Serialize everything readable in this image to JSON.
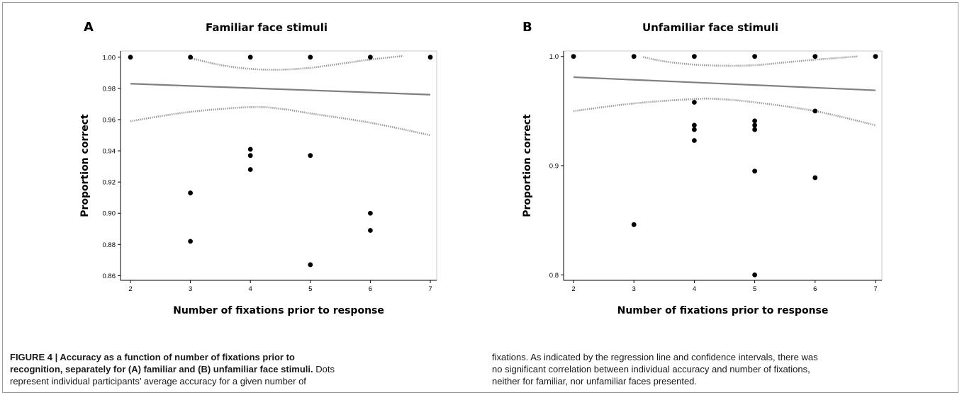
{
  "chart_data": [
    {
      "type": "scatter",
      "panel": "A",
      "title": "Familiar face stimuli",
      "xlabel": "Number of fixations prior to response",
      "ylabel": "Proportion correct",
      "xlim": [
        2,
        7
      ],
      "ylim": [
        0.857,
        1.004
      ],
      "xticks": [
        "2",
        "3",
        "4",
        "5",
        "6",
        "7"
      ],
      "yticks": [
        "0.86",
        "0.88",
        "0.90",
        "0.92",
        "0.94",
        "0.96",
        "0.98",
        "1.00"
      ],
      "points": [
        {
          "x": 2,
          "y": 1.0
        },
        {
          "x": 3,
          "y": 1.0
        },
        {
          "x": 4,
          "y": 1.0
        },
        {
          "x": 5,
          "y": 1.0
        },
        {
          "x": 6,
          "y": 1.0
        },
        {
          "x": 7,
          "y": 1.0
        },
        {
          "x": 3,
          "y": 0.913
        },
        {
          "x": 3,
          "y": 0.882
        },
        {
          "x": 4,
          "y": 0.941
        },
        {
          "x": 4,
          "y": 0.937
        },
        {
          "x": 4,
          "y": 0.928
        },
        {
          "x": 5,
          "y": 0.937
        },
        {
          "x": 5,
          "y": 0.867
        },
        {
          "x": 6,
          "y": 0.9
        },
        {
          "x": 6,
          "y": 0.889
        }
      ],
      "regression_line": [
        {
          "x": 2,
          "y": 0.983
        },
        {
          "x": 7,
          "y": 0.976
        }
      ],
      "ci_upper": [
        {
          "x": 3,
          "y": 0.9995
        },
        {
          "x": 3.5,
          "y": 0.995
        },
        {
          "x": 4,
          "y": 0.9925
        },
        {
          "x": 4.5,
          "y": 0.992
        },
        {
          "x": 5,
          "y": 0.9932
        },
        {
          "x": 5.5,
          "y": 0.9958
        },
        {
          "x": 6,
          "y": 0.9985
        },
        {
          "x": 6.55,
          "y": 1.0008
        }
      ],
      "ci_lower": [
        {
          "x": 2,
          "y": 0.959
        },
        {
          "x": 3,
          "y": 0.965
        },
        {
          "x": 4,
          "y": 0.968
        },
        {
          "x": 4.5,
          "y": 0.967
        },
        {
          "x": 5,
          "y": 0.964
        },
        {
          "x": 6,
          "y": 0.958
        },
        {
          "x": 7,
          "y": 0.95
        }
      ],
      "grid": false
    },
    {
      "type": "scatter",
      "panel": "B",
      "title": "Unfamiliar face stimuli",
      "xlabel": "Number of fixations prior to response",
      "ylabel": "Proportion correct",
      "xlim": [
        2,
        7
      ],
      "ylim": [
        0.795,
        1.005
      ],
      "xticks": [
        "2",
        "3",
        "4",
        "5",
        "6",
        "7"
      ],
      "yticks": [
        "0.8",
        "0.9",
        "1.0"
      ],
      "points": [
        {
          "x": 2,
          "y": 1.0
        },
        {
          "x": 3,
          "y": 1.0
        },
        {
          "x": 4,
          "y": 1.0
        },
        {
          "x": 5,
          "y": 1.0
        },
        {
          "x": 6,
          "y": 1.0
        },
        {
          "x": 7,
          "y": 1.0
        },
        {
          "x": 3,
          "y": 0.846
        },
        {
          "x": 4,
          "y": 0.958
        },
        {
          "x": 4,
          "y": 0.937
        },
        {
          "x": 4,
          "y": 0.933
        },
        {
          "x": 4,
          "y": 0.923
        },
        {
          "x": 5,
          "y": 0.941
        },
        {
          "x": 5,
          "y": 0.937
        },
        {
          "x": 5,
          "y": 0.933
        },
        {
          "x": 5,
          "y": 0.895
        },
        {
          "x": 5,
          "y": 0.8
        },
        {
          "x": 6,
          "y": 0.95
        },
        {
          "x": 6,
          "y": 0.889
        }
      ],
      "regression_line": [
        {
          "x": 2,
          "y": 0.981
        },
        {
          "x": 7,
          "y": 0.969
        }
      ],
      "ci_upper": [
        {
          "x": 3.15,
          "y": 0.9995
        },
        {
          "x": 3.5,
          "y": 0.9955
        },
        {
          "x": 4,
          "y": 0.9925
        },
        {
          "x": 4.5,
          "y": 0.9915
        },
        {
          "x": 5,
          "y": 0.992
        },
        {
          "x": 5.5,
          "y": 0.9945
        },
        {
          "x": 6,
          "y": 0.997
        },
        {
          "x": 6.7,
          "y": 1.0
        }
      ],
      "ci_lower": [
        {
          "x": 2,
          "y": 0.95
        },
        {
          "x": 3,
          "y": 0.957
        },
        {
          "x": 4,
          "y": 0.961
        },
        {
          "x": 4.4,
          "y": 0.961
        },
        {
          "x": 5,
          "y": 0.958
        },
        {
          "x": 6,
          "y": 0.95
        },
        {
          "x": 7,
          "y": 0.937
        }
      ],
      "grid": false
    }
  ],
  "caption": {
    "left_lines": [
      {
        "bold": "FIGURE 4 | Accuracy as a function of number of fixations prior to",
        "normal": ""
      },
      {
        "bold": "recognition, separately for (A) familiar and (B) unfamiliar face stimuli.",
        "normal": " Dots"
      },
      {
        "bold": "",
        "normal": "represent individual participants’ average accuracy for a given number of"
      }
    ],
    "right_lines": [
      "fixations. As indicated by the regression line and confidence intervals, there was",
      "no significant correlation between individual accuracy and number of fixations,",
      "neither for familiar, nor unfamiliar faces presented."
    ]
  }
}
